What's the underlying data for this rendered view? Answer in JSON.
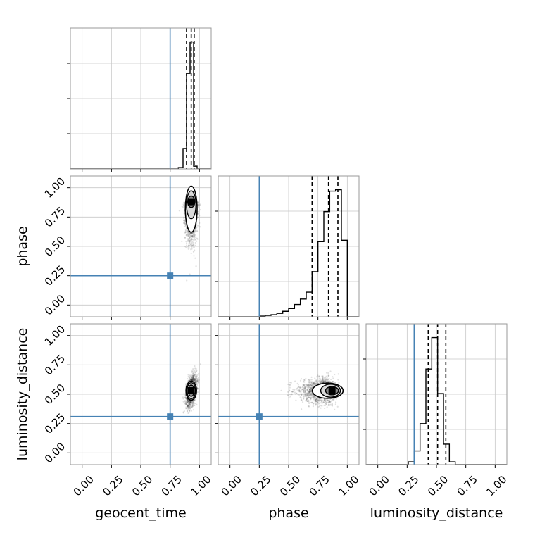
{
  "chart_data": {
    "type": "corner",
    "parameters": [
      "geocent_time",
      "phase",
      "luminosity_distance"
    ],
    "axis_labels": {
      "bottom": [
        "geocent_time",
        "phase",
        "luminosity_distance"
      ],
      "left": [
        "",
        "phase",
        "luminosity_distance"
      ]
    },
    "ticks": [
      0.0,
      0.25,
      0.5,
      0.75,
      1.0
    ],
    "tick_labels": [
      "0.00",
      "0.25",
      "0.50",
      "0.75",
      "1.00"
    ],
    "range": [
      -0.1,
      1.1
    ],
    "truths": {
      "geocent_time": 0.75,
      "phase": 0.25,
      "luminosity_distance": 0.31
    },
    "truth_color": "#4682b4",
    "grid": true,
    "histograms": [
      {
        "parameter": "geocent_time",
        "bin_edges": [
          0.78,
          0.82,
          0.86,
          0.89,
          0.92,
          0.95,
          0.98,
          1.02
        ],
        "counts": [
          0.0,
          0.01,
          0.15,
          0.7,
          0.93,
          0.02,
          0.0
        ],
        "quantiles": [
          0.89,
          0.93,
          0.955
        ]
      },
      {
        "parameter": "phase",
        "bin_edges": [
          0.0,
          0.05,
          0.1,
          0.15,
          0.2,
          0.25,
          0.3,
          0.35,
          0.4,
          0.45,
          0.5,
          0.55,
          0.6,
          0.65,
          0.7,
          0.75,
          0.8,
          0.85,
          0.9,
          0.95,
          1.0
        ],
        "counts": [
          0.0,
          0.0,
          0.0,
          0.0,
          0.0,
          0.005,
          0.01,
          0.015,
          0.025,
          0.04,
          0.06,
          0.09,
          0.13,
          0.18,
          0.33,
          0.55,
          0.77,
          0.92,
          0.93,
          0.56
        ],
        "quantiles": [
          0.7,
          0.84,
          0.92
        ]
      },
      {
        "parameter": "luminosity_distance",
        "bin_edges": [
          0.21,
          0.26,
          0.31,
          0.36,
          0.41,
          0.46,
          0.51,
          0.56,
          0.61,
          0.66,
          0.71
        ],
        "counts": [
          0.0,
          0.02,
          0.1,
          0.3,
          0.7,
          0.93,
          0.52,
          0.15,
          0.02,
          0.0
        ],
        "quantiles": [
          0.43,
          0.51,
          0.58
        ]
      }
    ],
    "pairs": [
      {
        "x": "geocent_time",
        "y": "phase",
        "peak": [
          0.93,
          0.88
        ],
        "contour_radii": [
          0.035,
          0.14
        ]
      },
      {
        "x": "geocent_time",
        "y": "luminosity_distance",
        "peak": [
          0.93,
          0.53
        ],
        "contour_radii": [
          0.04,
          0.1
        ]
      },
      {
        "x": "phase",
        "y": "luminosity_distance",
        "peak": [
          0.87,
          0.53
        ],
        "contour_radii": [
          0.05,
          0.1
        ]
      }
    ]
  }
}
